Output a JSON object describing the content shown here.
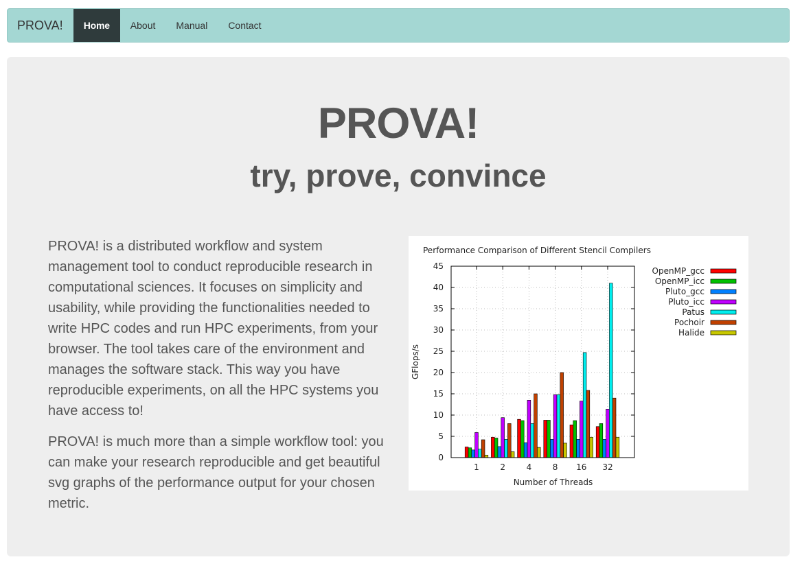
{
  "navbar": {
    "brand": "PROVA!",
    "items": [
      {
        "label": "Home",
        "active": true
      },
      {
        "label": "About",
        "active": false
      },
      {
        "label": "Manual",
        "active": false
      },
      {
        "label": "Contact",
        "active": false
      }
    ]
  },
  "hero": {
    "title": "PROVA!",
    "subtitle": "try, prove, convince"
  },
  "content": {
    "paragraph1": "PROVA! is a distributed workflow and system management tool to conduct reproducible research in computational sciences. It focuses on simplicity and usability, while providing the functionalities needed to write HPC codes and run HPC experiments, from your browser. The tool takes care of the environment and manages the software stack. This way you have reproducible experiments, on all the HPC systems you have access to!",
    "paragraph2": "PROVA! is much more than a simple workflow tool: you can make your research reproducible and get beautiful svg graphs of the performance output for your chosen metric."
  },
  "chart_data": {
    "type": "bar",
    "title": "Performance Comparison of Different Stencil Compilers",
    "xlabel": "Number of Threads",
    "ylabel": "GFlops/s",
    "ylim": [
      0,
      45
    ],
    "yticks": [
      0,
      5,
      10,
      15,
      20,
      25,
      30,
      35,
      40,
      45
    ],
    "grid": true,
    "legend_position": "right",
    "categories": [
      "1",
      "2",
      "4",
      "8",
      "16",
      "32"
    ],
    "series": [
      {
        "name": "OpenMP_gcc",
        "color": "#ff0000",
        "values": [
          2.5,
          4.8,
          9.0,
          8.8,
          7.7,
          7.3
        ]
      },
      {
        "name": "OpenMP_icc",
        "color": "#00c000",
        "values": [
          2.3,
          4.6,
          8.7,
          8.8,
          8.7,
          8.0
        ]
      },
      {
        "name": "Pluto_gcc",
        "color": "#0080ff",
        "values": [
          1.8,
          2.6,
          3.5,
          4.3,
          4.3,
          4.3
        ]
      },
      {
        "name": "Pluto_icc",
        "color": "#c000ff",
        "values": [
          5.9,
          9.4,
          13.5,
          14.8,
          13.3,
          11.4
        ]
      },
      {
        "name": "Patus",
        "color": "#00eeee",
        "values": [
          2.0,
          4.3,
          8.0,
          14.8,
          24.7,
          41.0
        ]
      },
      {
        "name": "Pochoir",
        "color": "#c04000",
        "values": [
          4.2,
          8.0,
          15.0,
          20.0,
          15.8,
          14.0
        ]
      },
      {
        "name": "Halide",
        "color": "#c8c800",
        "values": [
          0.6,
          1.4,
          2.4,
          3.4,
          4.8,
          4.8
        ]
      }
    ]
  }
}
